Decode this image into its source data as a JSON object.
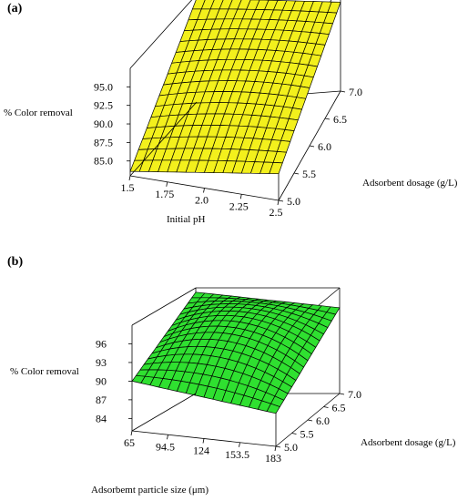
{
  "charts_meta": {
    "colors": {
      "a_fill": "#f3f01c",
      "b_fill": "#2fe030",
      "mesh": "#000000",
      "box": "#000000",
      "background": "#ffffff"
    }
  },
  "chart_data": [
    {
      "id": "a",
      "panel_label": "(a)",
      "type": "surface",
      "title": "",
      "xlabel": "Initial pH",
      "ylabel": "Adsorbent dosage (g/L)",
      "zlabel": "% Color removal",
      "x_ticks": [
        "1.5",
        "1.75",
        "2.0",
        "2.25",
        "2.5"
      ],
      "y_ticks": [
        "5.0",
        "5.5",
        "6.0",
        "6.5",
        "7.0"
      ],
      "z_ticks": [
        "85.0",
        "87.5",
        "90.0",
        "92.5",
        "95.0"
      ],
      "xlim": [
        1.5,
        2.5
      ],
      "ylim": [
        5.0,
        7.0
      ],
      "zlim": [
        83.0,
        97.5
      ],
      "grid_size": 16,
      "surface": {
        "at": [
          {
            "x": 1.5,
            "y": 5.0,
            "z": 83.6
          },
          {
            "x": 2.5,
            "y": 5.0,
            "z": 86.6
          },
          {
            "x": 1.5,
            "y": 7.0,
            "z": 97.0
          },
          {
            "x": 2.5,
            "y": 7.0,
            "z": 95.0
          },
          {
            "x": 2.0,
            "y": 6.0,
            "z": 91.3
          }
        ]
      }
    },
    {
      "id": "b",
      "panel_label": "(b)",
      "type": "surface",
      "title": "",
      "xlabel": "Adsorbemt particle size (μm)",
      "ylabel": "Adsorbent dosage (g/L)",
      "zlabel": "% Color removal",
      "x_ticks": [
        "65",
        "94.5",
        "124",
        "153.5",
        "183"
      ],
      "y_ticks": [
        "5.0",
        "5.5",
        "6.0",
        "6.5",
        "7.0"
      ],
      "z_ticks": [
        "84",
        "87",
        "90",
        "93",
        "96"
      ],
      "xlim": [
        65,
        183
      ],
      "ylim": [
        5.0,
        7.0
      ],
      "zlim": [
        82,
        99
      ],
      "grid_size": 16,
      "surface": {
        "at": [
          {
            "x": 65,
            "y": 5.0,
            "z": 90.0
          },
          {
            "x": 183,
            "y": 5.0,
            "z": 87.3
          },
          {
            "x": 65,
            "y": 7.0,
            "z": 98.3
          },
          {
            "x": 183,
            "y": 7.0,
            "z": 95.8
          },
          {
            "x": 124,
            "y": 6.0,
            "z": 96.2
          }
        ]
      }
    }
  ]
}
